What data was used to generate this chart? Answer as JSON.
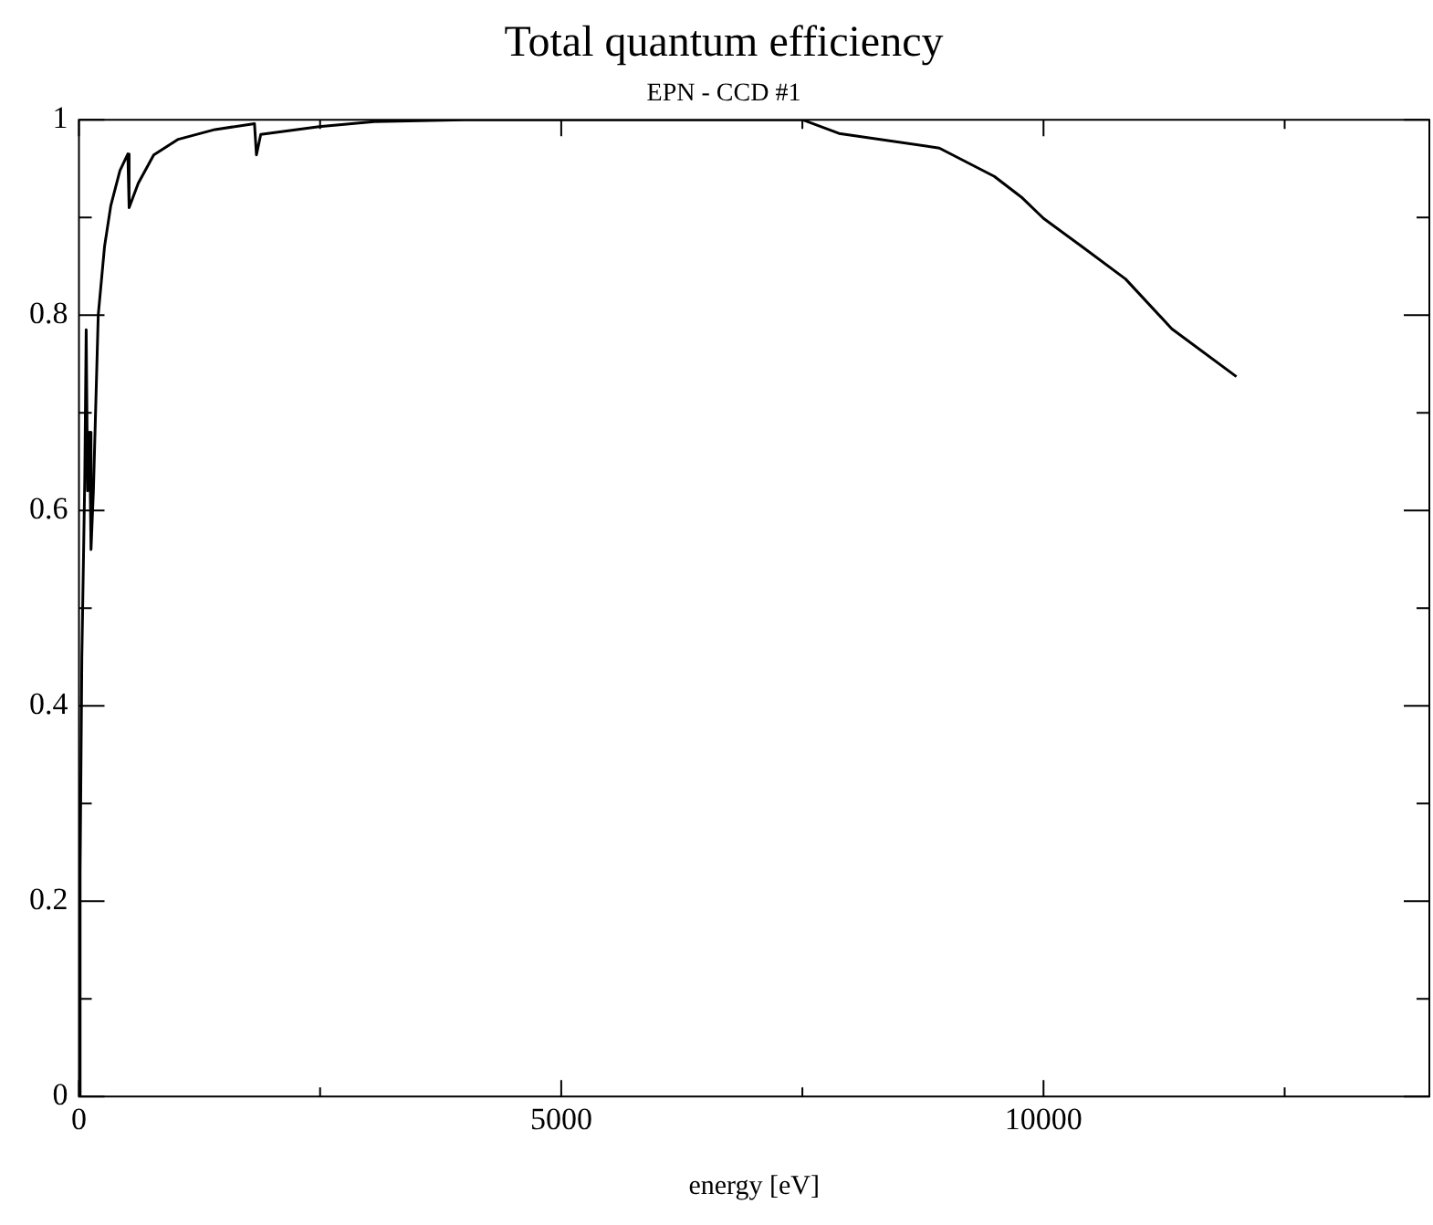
{
  "chart_data": {
    "type": "line",
    "title": "Total quantum efficiency",
    "subtitle": "EPN - CCD #1",
    "xlabel": "energy [eV]",
    "series": [
      {
        "color": "#000000",
        "x": [
          0,
          12,
          30,
          60,
          75,
          90,
          110,
          125,
          150,
          200,
          265,
          330,
          425,
          507,
          520,
          615,
          775,
          1030,
          1410,
          1820,
          1840,
          1885,
          2490,
          3060,
          4000,
          7500,
          7880,
          8920,
          9490,
          9780,
          10000,
          10400,
          10850,
          11330,
          12000
        ],
        "values": [
          0,
          0.23,
          0.45,
          0.63,
          0.785,
          0.62,
          0.68,
          0.56,
          0.62,
          0.8,
          0.87,
          0.912,
          0.948,
          0.965,
          0.91,
          0.935,
          0.964,
          0.98,
          0.99,
          0.996,
          0.964,
          0.985,
          0.993,
          0.998,
          1,
          1,
          0.986,
          0.971,
          0.942,
          0.92,
          0.899,
          0.87,
          0.837,
          0.786,
          0.737
        ]
      }
    ],
    "xlim": [
      0,
      14000
    ],
    "xticks": [
      0,
      {
        "value": 2500,
        "label": null
      },
      5000,
      {
        "value": 7500,
        "label": null
      },
      10000,
      {
        "value": 12500,
        "label": null
      }
    ],
    "ylim": [
      0,
      1
    ],
    "yticks": [
      0,
      {
        "value": 0.1,
        "label": null
      },
      0.2,
      {
        "value": 0.3,
        "label": null
      },
      0.4,
      {
        "value": 0.5,
        "label": null
      },
      0.6,
      {
        "value": 0.7,
        "label": null
      },
      0.8,
      {
        "value": 0.9,
        "label": null
      },
      1
    ],
    "grid": false,
    "legend": false,
    "marker": "none",
    "line_style": "solid"
  }
}
